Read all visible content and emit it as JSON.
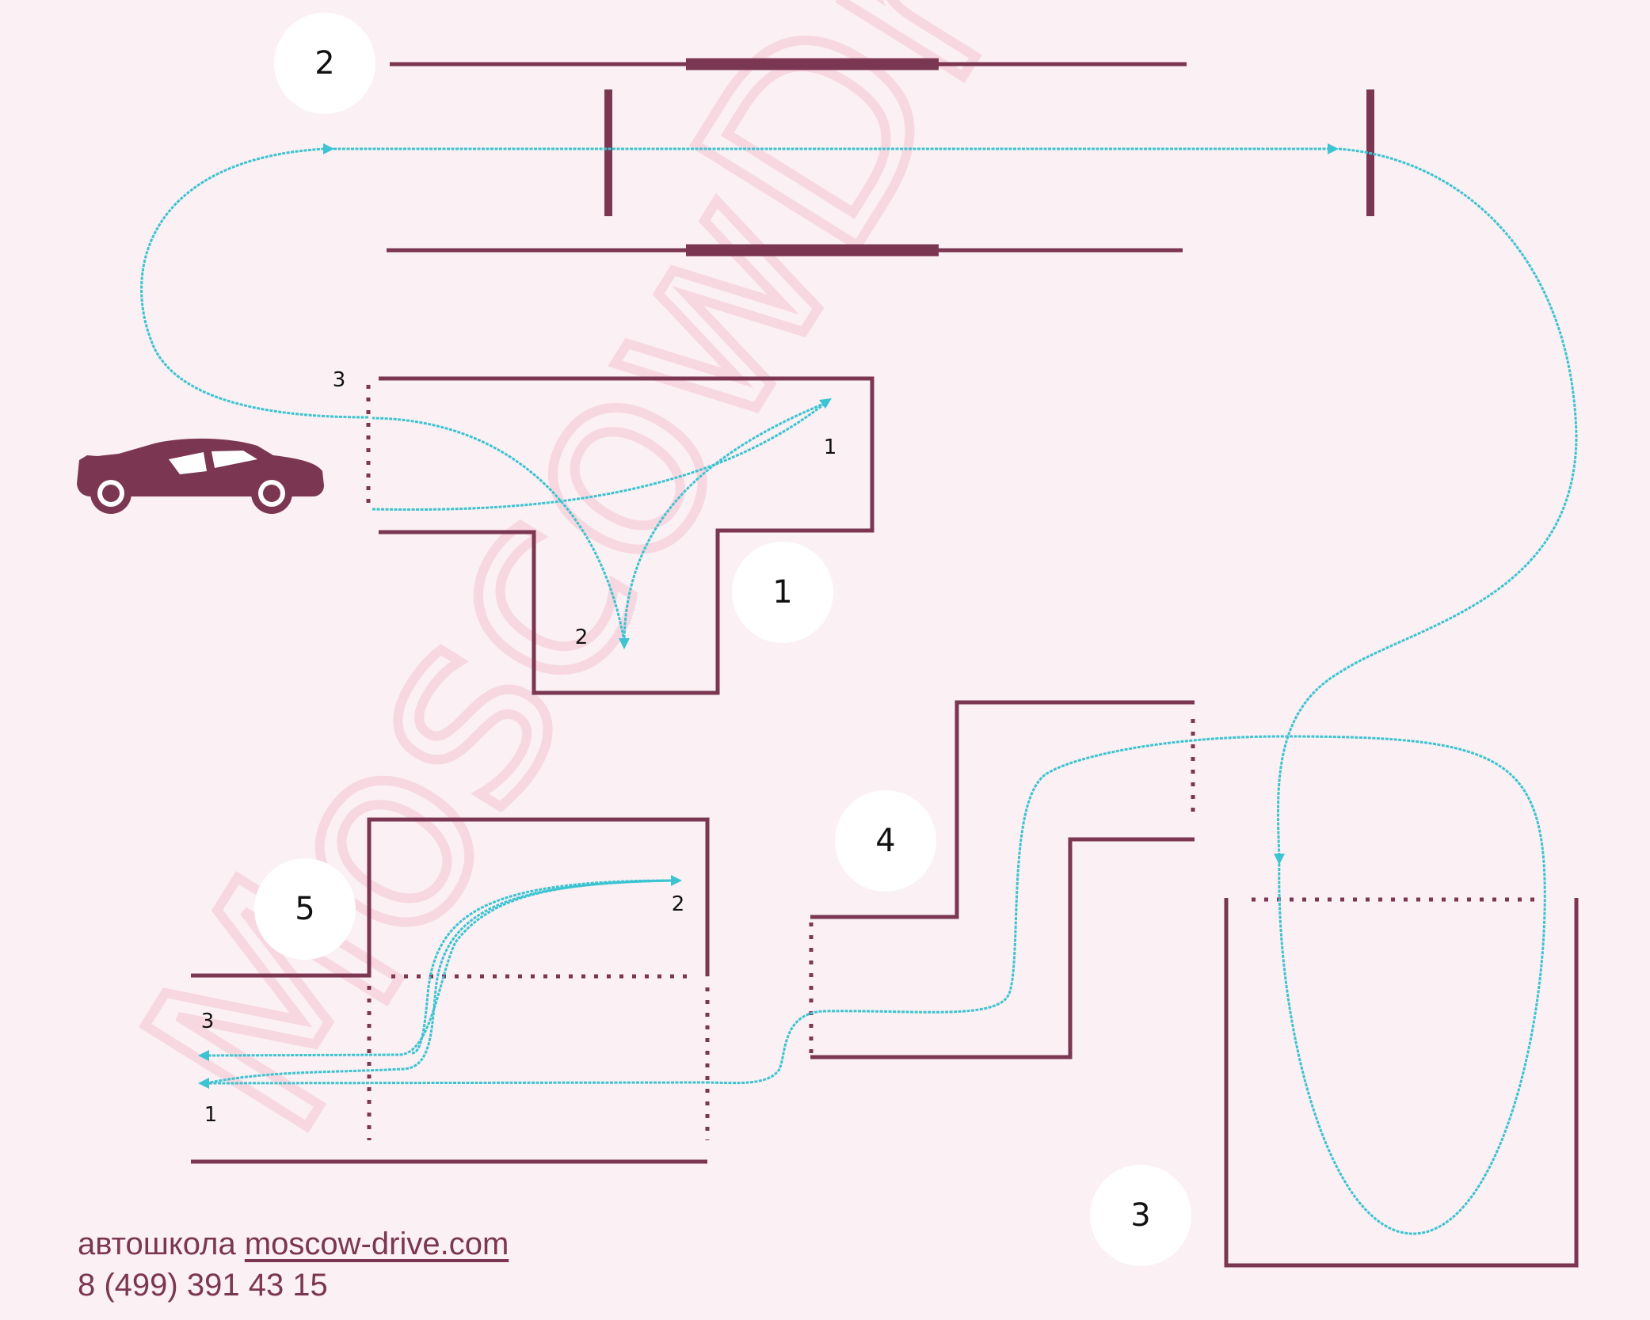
{
  "watermark": "MoscowDrive",
  "exercises": [
    {
      "number": "1"
    },
    {
      "number": "2"
    },
    {
      "number": "3"
    },
    {
      "number": "4"
    },
    {
      "number": "5"
    }
  ],
  "exercise1_points": [
    "1",
    "2",
    "3"
  ],
  "exercise5_points": [
    "1",
    "2",
    "3"
  ],
  "footer": {
    "school_label": "автошкола",
    "site_link": "moscow-drive.com",
    "phone": "8 (499) 391 43 15"
  },
  "colors": {
    "background": "#fbf0f3",
    "walls": "#7b3652",
    "route": "#3dc4d2",
    "watermark": "#f7d7e0"
  },
  "icons": [
    "car-icon"
  ]
}
